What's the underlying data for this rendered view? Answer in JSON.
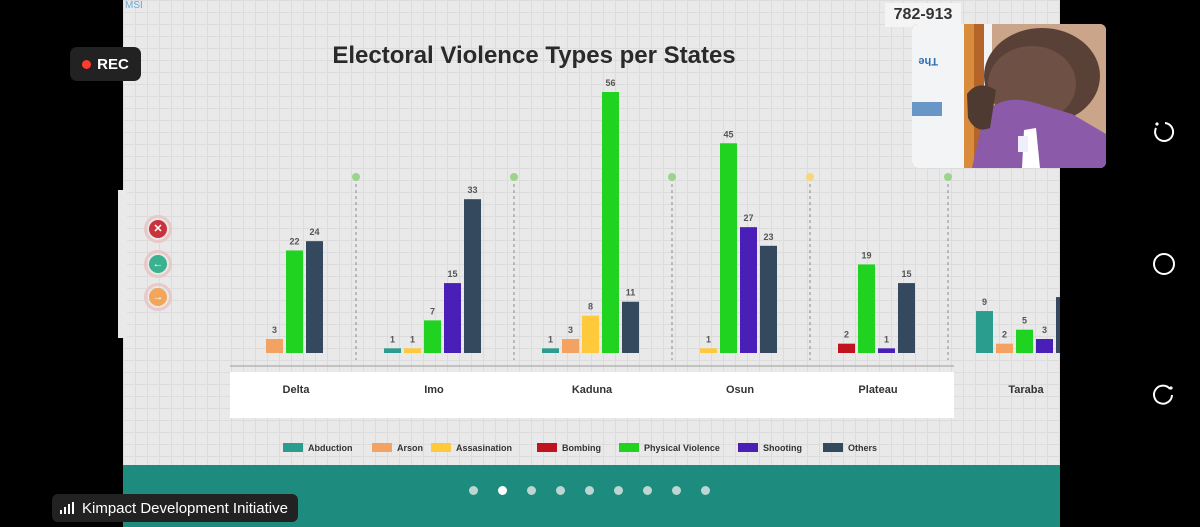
{
  "window": {
    "meeting_id": "782-913",
    "rec_label": "REC",
    "participant_name": "Kimpact Development Initiative",
    "slide_tag": "MSI",
    "video_caption": "The"
  },
  "nav_buttons": [
    {
      "icon": "close-icon",
      "glyph": "✕",
      "color": "#c8333d"
    },
    {
      "icon": "arrow-left-icon",
      "glyph": "←",
      "color": "#3ab18f"
    },
    {
      "icon": "arrow-right-icon",
      "glyph": "→",
      "color": "#f2a65a"
    }
  ],
  "pager": {
    "count": 9,
    "active": 1
  },
  "colors": {
    "Abduction": "#2a9d8f",
    "Arson": "#f4a261",
    "Assasination": "#ffc93c",
    "Bombing": "#c1121f",
    "Physical Violence": "#1fd320",
    "Shooting": "#4a1fb8",
    "Others": "#34495e",
    "teal_bar": "#1d8b7e"
  },
  "chart_data": {
    "type": "bar",
    "title": "Electoral Violence Types per States",
    "categories": [
      "Delta",
      "Imo",
      "Kaduna",
      "Osun",
      "Plateau",
      "Taraba"
    ],
    "series": [
      {
        "name": "Abduction",
        "values": [
          null,
          1,
          1,
          null,
          null,
          9
        ]
      },
      {
        "name": "Arson",
        "values": [
          3,
          null,
          3,
          null,
          null,
          2
        ]
      },
      {
        "name": "Assasination",
        "values": [
          null,
          1,
          8,
          1,
          null,
          null
        ]
      },
      {
        "name": "Bombing",
        "values": [
          null,
          null,
          null,
          null,
          2,
          null
        ]
      },
      {
        "name": "Physical Violence",
        "values": [
          22,
          7,
          56,
          45,
          19,
          5
        ]
      },
      {
        "name": "Shooting",
        "values": [
          null,
          15,
          null,
          27,
          1,
          3
        ]
      },
      {
        "name": "Others",
        "values": [
          24,
          33,
          11,
          23,
          15,
          12
        ]
      }
    ],
    "ylim": [
      0,
      56
    ],
    "legend": "bottom"
  }
}
